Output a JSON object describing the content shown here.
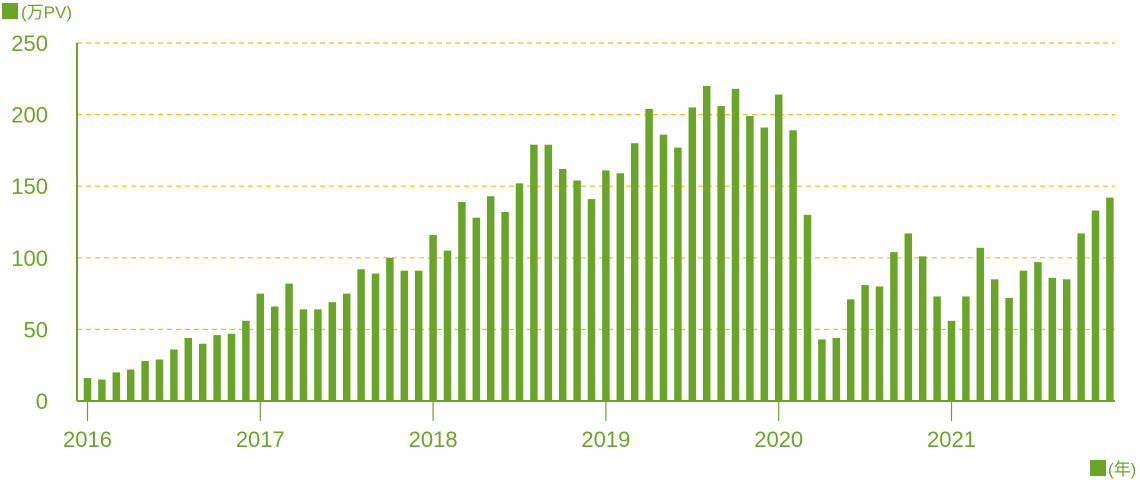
{
  "chart_data": {
    "type": "bar",
    "y_unit_label": "(万PV)",
    "x_unit_label": "(年)",
    "ylim": [
      0,
      250
    ],
    "y_ticks": [
      0,
      50,
      100,
      150,
      200,
      250
    ],
    "grid": "horizontal dashed",
    "colors": {
      "bar": "#6aa52a",
      "grid": "#e8c020",
      "axis": "#6aa52a"
    },
    "x_ticks": [
      {
        "label": "2016",
        "index": 0
      },
      {
        "label": "2017",
        "index": 12
      },
      {
        "label": "2018",
        "index": 24
      },
      {
        "label": "2019",
        "index": 36
      },
      {
        "label": "2020",
        "index": 48
      },
      {
        "label": "2021",
        "index": 60
      }
    ],
    "categories": [
      "2016-01",
      "2016-02",
      "2016-03",
      "2016-04",
      "2016-05",
      "2016-06",
      "2016-07",
      "2016-08",
      "2016-09",
      "2016-10",
      "2016-11",
      "2016-12",
      "2017-01",
      "2017-02",
      "2017-03",
      "2017-04",
      "2017-05",
      "2017-06",
      "2017-07",
      "2017-08",
      "2017-09",
      "2017-10",
      "2017-11",
      "2017-12",
      "2018-01",
      "2018-02",
      "2018-03",
      "2018-04",
      "2018-05",
      "2018-06",
      "2018-07",
      "2018-08",
      "2018-09",
      "2018-10",
      "2018-11",
      "2018-12",
      "2019-01",
      "2019-02",
      "2019-03",
      "2019-04",
      "2019-05",
      "2019-06",
      "2019-07",
      "2019-08",
      "2019-09",
      "2019-10",
      "2019-11",
      "2019-12",
      "2020-01",
      "2020-02",
      "2020-03",
      "2020-04",
      "2020-05",
      "2020-06",
      "2020-07",
      "2020-08",
      "2020-09",
      "2020-10",
      "2020-11",
      "2020-12",
      "2021-01",
      "2021-02",
      "2021-03",
      "2021-04",
      "2021-05",
      "2021-06",
      "2021-07",
      "2021-08",
      "2021-09",
      "2021-10",
      "2021-11",
      "2021-12"
    ],
    "values": [
      16,
      15,
      20,
      22,
      28,
      29,
      36,
      44,
      40,
      46,
      47,
      56,
      75,
      66,
      82,
      64,
      64,
      69,
      75,
      92,
      89,
      100,
      91,
      91,
      116,
      105,
      139,
      128,
      143,
      132,
      152,
      179,
      179,
      162,
      154,
      141,
      161,
      159,
      180,
      204,
      186,
      177,
      205,
      220,
      206,
      218,
      199,
      191,
      214,
      189,
      130,
      43,
      44,
      71,
      81,
      80,
      104,
      117,
      101,
      73,
      56,
      73,
      107,
      85,
      72,
      91,
      97,
      86,
      85,
      117,
      133,
      142
    ]
  }
}
